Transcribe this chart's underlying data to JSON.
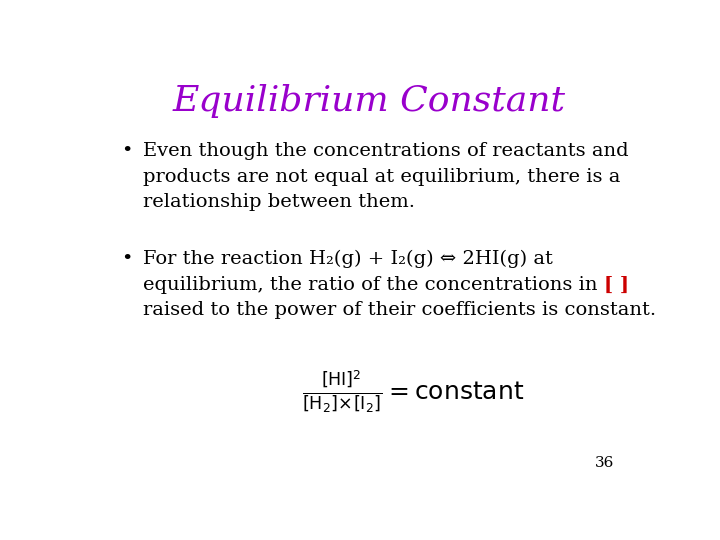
{
  "title": "Equilibrium Constant",
  "title_color": "#9900CC",
  "title_fontsize": 26,
  "background_color": "#FFFFFF",
  "bullet1_lines": [
    "Even though the concentrations of reactants and",
    "products are not equal at equilibrium, there is a",
    "relationship between them."
  ],
  "bullet2_line1": "For the reaction $\\mathrm{H_2}$(g) + $\\mathrm{I_2}$(g) ⇔ 2HI(g) at",
  "bullet2_line2a": "equilibrium, the ratio of the concentrations in ",
  "bullet2_line2b": "[ ]",
  "bullet2_line3": "raised to the power of their coefficients is constant.",
  "text_color": "#000000",
  "red_color": "#CC0000",
  "text_fontsize": 14,
  "formula_fontsize": 16,
  "page_number": "36",
  "bullet_char": "•"
}
